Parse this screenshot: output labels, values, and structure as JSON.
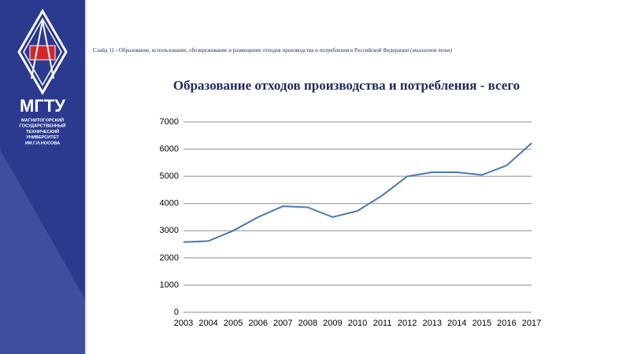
{
  "sidebar": {
    "logo_text": "МГТУ",
    "university": [
      "МАГНИТОГОРСКИЙ",
      "ГОСУДАРСТВЕННЫЙ",
      "ТЕХНИЧЕСКИЙ",
      "УНИВЕРСИТЕТ",
      "ИМ.Г.И.НОСОВА"
    ]
  },
  "slide_title": "Слайд 11 - Образование, использование, обезвреживание и размещение отходов производства и потребления в Российской Федерации",
  "slide_title_unit": "(миллионов тонн)",
  "chart_data": {
    "type": "line",
    "title": "Образование отходов производства и потребления - всего",
    "categories": [
      "2003",
      "2004",
      "2005",
      "2006",
      "2007",
      "2008",
      "2009",
      "2010",
      "2011",
      "2012",
      "2013",
      "2014",
      "2015",
      "2016",
      "2017"
    ],
    "values": [
      2580,
      2620,
      3000,
      3500,
      3900,
      3860,
      3500,
      3730,
      4300,
      5000,
      5150,
      5150,
      5050,
      5400,
      6220
    ],
    "color": "#4a78b0",
    "ylim": [
      0,
      7000
    ],
    "yticks": [
      0,
      1000,
      2000,
      3000,
      4000,
      5000,
      6000,
      7000
    ],
    "grid": true
  }
}
